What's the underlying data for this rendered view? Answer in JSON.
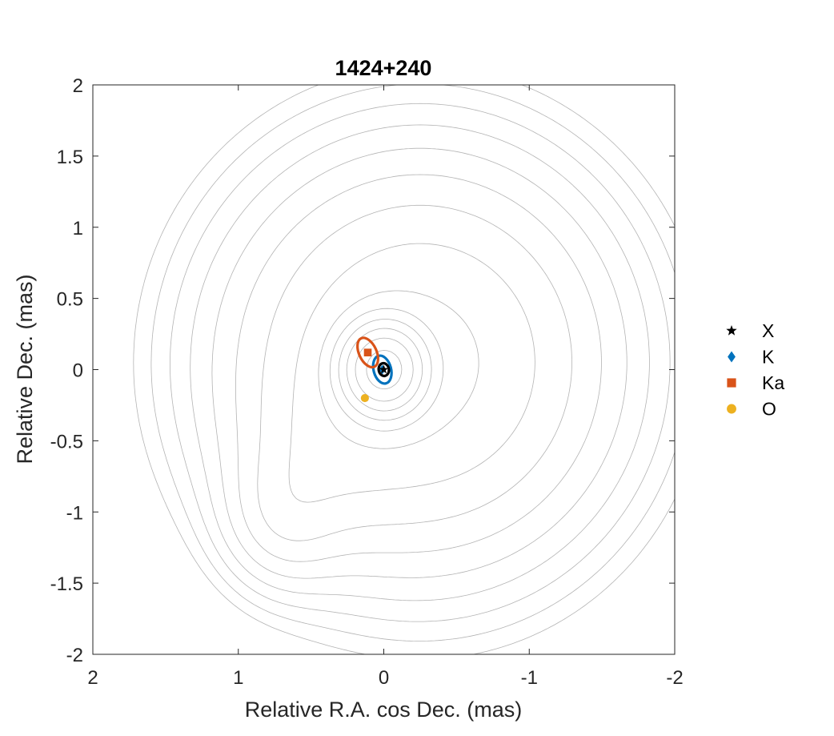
{
  "chart_data": {
    "type": "scatter",
    "title": "1424+240",
    "xlabel": "Relative R.A. cos Dec. (mas)",
    "ylabel": "Relative Dec. (mas)",
    "xlim": [
      2,
      -2
    ],
    "ylim": [
      -2,
      2
    ],
    "x_reversed": true,
    "xticks": [
      2,
      1,
      0,
      -1,
      -2
    ],
    "xtick_labels": [
      "2",
      "1",
      "0",
      "-1",
      "-2"
    ],
    "yticks": [
      2,
      1.5,
      1,
      0.5,
      0,
      -0.5,
      -1,
      -1.5,
      -2
    ],
    "ytick_labels": [
      "2",
      "1.5",
      "1",
      "0.5",
      "0",
      "-0.5",
      "-1",
      "-1.5",
      "-2"
    ],
    "grid": false,
    "legend_position": "right",
    "series": [
      {
        "name": "X",
        "marker": "star",
        "color": "#000000",
        "x": 0.0,
        "y": 0.0,
        "ellipse": {
          "a": 0.035,
          "b": 0.045,
          "angle_deg": -10
        }
      },
      {
        "name": "K",
        "marker": "diamond",
        "color": "#0072BD",
        "x": 0.01,
        "y": 0.0,
        "ellipse": {
          "a": 0.06,
          "b": 0.1,
          "angle_deg": -15
        }
      },
      {
        "name": "Ka",
        "marker": "square",
        "color": "#D95319",
        "x": 0.11,
        "y": 0.12,
        "ellipse": {
          "a": 0.06,
          "b": 0.11,
          "angle_deg": -25
        }
      },
      {
        "name": "O",
        "marker": "circle",
        "color": "#EDB120",
        "x": 0.13,
        "y": -0.2
      }
    ],
    "contours": {
      "color": "#b3b3b3",
      "peak": {
        "x": 0.0,
        "y": 0.0
      },
      "levels_count": 16
    }
  }
}
